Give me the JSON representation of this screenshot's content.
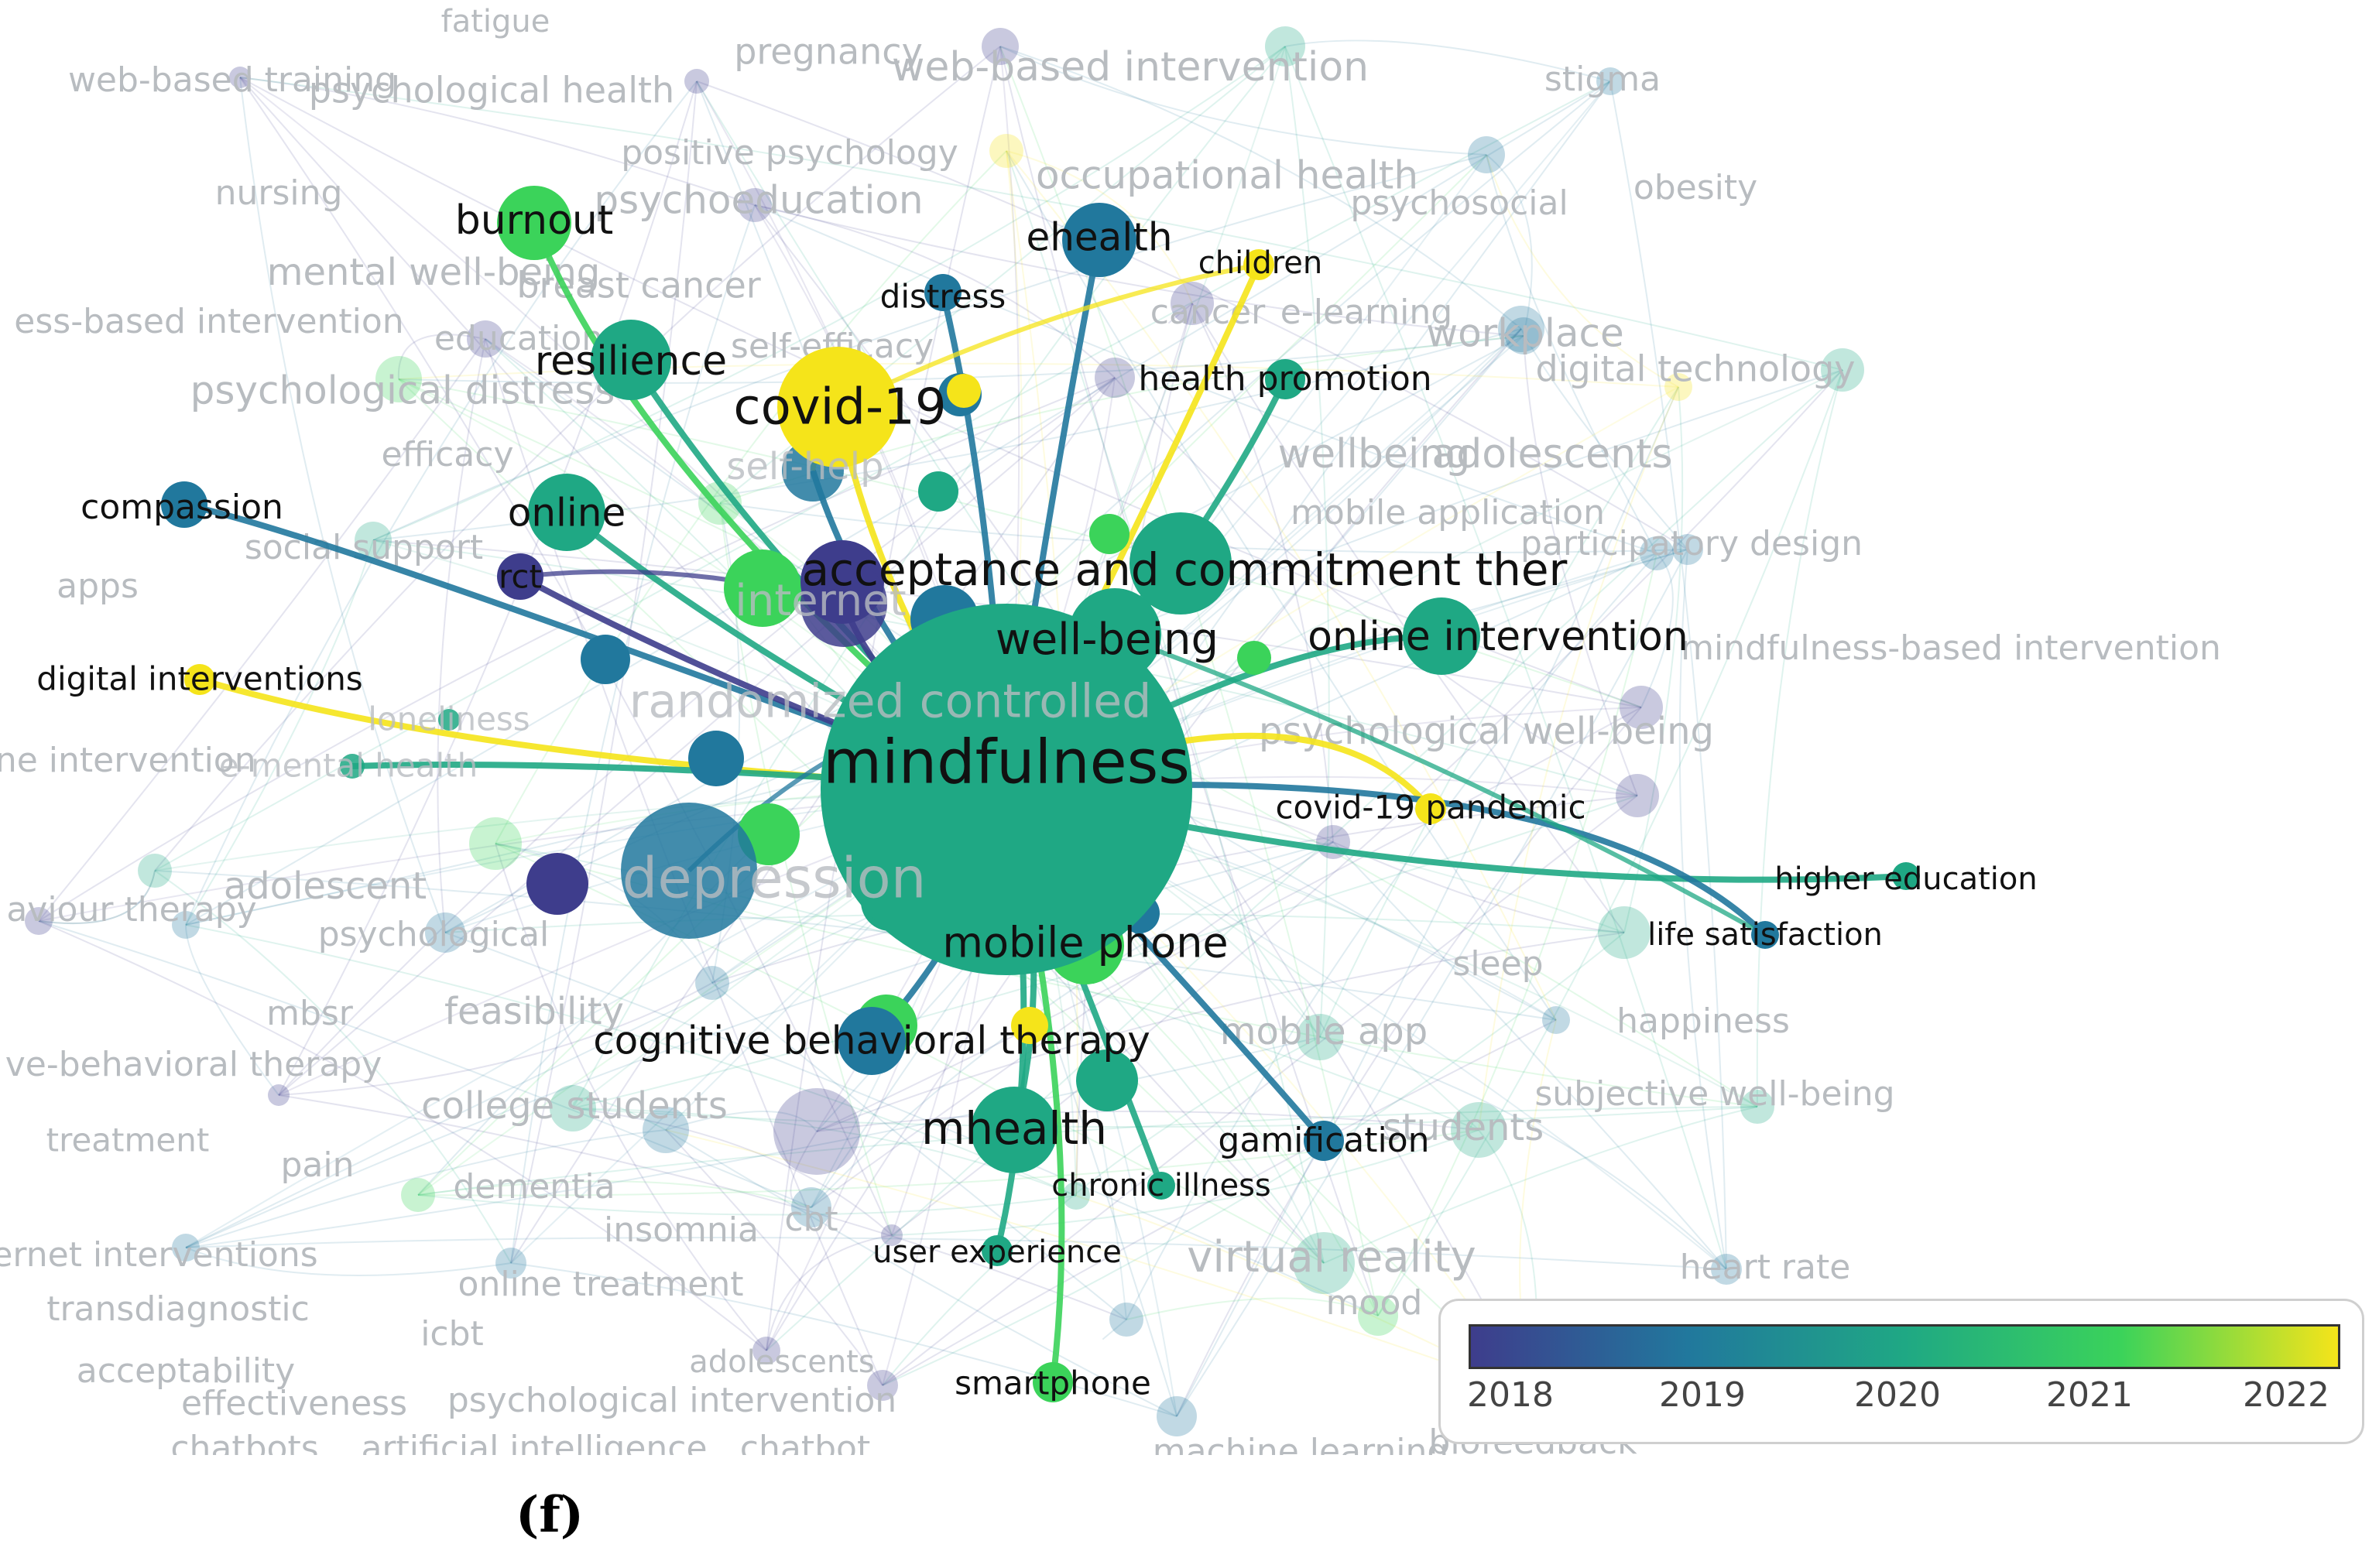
{
  "colors": {
    "2018": "#3e3d8c",
    "2019": "#21789d",
    "2020": "#1fa884",
    "2021": "#3bd35a",
    "2022": "#f5e41a",
    "faded_label": "#b8bcc0",
    "active_label": "#111111"
  },
  "legend": {
    "ticks": [
      "2018",
      "2019",
      "2020",
      "2021",
      "2022"
    ],
    "gradient": [
      "#3e3d8c",
      "#21789d",
      "#1fa884",
      "#3bd35a",
      "#f5e41a"
    ]
  },
  "caption": "(f)",
  "nodes": [
    {
      "id": "mindfulness",
      "label": "mindfulness",
      "year": 2020,
      "size": 5,
      "active": true
    },
    {
      "id": "covid19",
      "label": "covid-19",
      "year": 2022,
      "size": 4,
      "active": true
    },
    {
      "id": "acceptance",
      "label": "acceptance and commitment ther",
      "year": 2020,
      "size": 4,
      "active": true
    },
    {
      "id": "wellbeing",
      "label": "well-being",
      "year": 2020,
      "size": 4,
      "active": true
    },
    {
      "id": "online_intervention",
      "label": "online intervention",
      "year": 2020,
      "size": 4,
      "active": true
    },
    {
      "id": "depression",
      "label": "depression",
      "year": 2019,
      "size": 5,
      "active": false
    },
    {
      "id": "rct_controlled",
      "label": "randomized controlled",
      "year": 2019,
      "size": 4,
      "active": false
    },
    {
      "id": "burnout",
      "label": "burnout",
      "year": 2021,
      "size": 3,
      "active": true
    },
    {
      "id": "resilience",
      "label": "resilience",
      "year": 2020,
      "size": 3,
      "active": true
    },
    {
      "id": "ehealth",
      "label": "ehealth",
      "year": 2019,
      "size": 3,
      "active": true
    },
    {
      "id": "distress",
      "label": "distress",
      "year": 2019,
      "size": 2,
      "active": true
    },
    {
      "id": "children",
      "label": "children",
      "year": 2022,
      "size": 2,
      "active": true
    },
    {
      "id": "health_promotion",
      "label": "health promotion",
      "year": 2020,
      "size": 2,
      "active": true
    },
    {
      "id": "compassion",
      "label": "compassion",
      "year": 2019,
      "size": 2,
      "active": true
    },
    {
      "id": "online",
      "label": "online",
      "year": 2020,
      "size": 3,
      "active": true
    },
    {
      "id": "rct",
      "label": "rct",
      "year": 2018,
      "size": 2,
      "active": true
    },
    {
      "id": "digital_interventions",
      "label": "digital interventions",
      "year": 2022,
      "size": 2,
      "active": true
    },
    {
      "id": "covid19_pandemic",
      "label": "covid-19 pandemic",
      "year": 2022,
      "size": 2,
      "active": true
    },
    {
      "id": "higher_education",
      "label": "higher education",
      "year": 2020,
      "size": 1,
      "active": true
    },
    {
      "id": "life_satisfaction",
      "label": "life satisfaction",
      "year": 2019,
      "size": 1,
      "active": true
    },
    {
      "id": "mobile_phone",
      "label": "mobile phone",
      "year": 2021,
      "size": 3,
      "active": true
    },
    {
      "id": "cbt_therapy",
      "label": "cognitive behavioral therapy",
      "year": 2019,
      "size": 3,
      "active": true
    },
    {
      "id": "mhealth",
      "label": "mhealth",
      "year": 2020,
      "size": 4,
      "active": true
    },
    {
      "id": "gamification",
      "label": "gamification",
      "year": 2019,
      "size": 2,
      "active": true
    },
    {
      "id": "chronic_illness",
      "label": "chronic illness",
      "year": 2020,
      "size": 1,
      "active": true
    },
    {
      "id": "user_experience",
      "label": "user experience",
      "year": 2020,
      "size": 1,
      "active": true
    },
    {
      "id": "smartphone",
      "label": "smartphone",
      "year": 2021,
      "size": 2,
      "active": true
    },
    {
      "id": "self_help",
      "label": "self-help",
      "year": 2019,
      "size": 2,
      "active": false
    },
    {
      "id": "internet",
      "label": "internet",
      "year": 2018,
      "size": 3,
      "active": false
    },
    {
      "id": "loneliness",
      "label": "loneliness",
      "year": 2020,
      "size": 1,
      "active": false
    },
    {
      "id": "emental",
      "label": "e-mental health",
      "year": 2020,
      "size": 1,
      "active": false
    }
  ],
  "background_labels": [
    "fatigue",
    "pregnancy",
    "web-based intervention",
    "stigma",
    "web-based training",
    "psychological health",
    "positive psychology",
    "occupational health",
    "nursing",
    "psychoeducation",
    "psychosocial",
    "obesity",
    "mental well-being",
    "breast cancer",
    "cancer",
    "e-learning",
    "ess-based intervention",
    "education",
    "self-efficacy",
    "workplace",
    "digital technology",
    "psychological distress",
    "efficacy",
    "wellbeing",
    "adolescents",
    "mobile application",
    "participatory design",
    "social support",
    "apps",
    "mindfulness-based intervention",
    "psychological well-being",
    "line intervention",
    "adolescent",
    "aviour therapy",
    "psychological",
    "sleep",
    "happiness",
    "mbsr",
    "feasibility",
    "ve-behavioral therapy",
    "mobile app",
    "subjective well-being",
    "college students",
    "students",
    "treatment",
    "pain",
    "dementia",
    "cbt",
    "insomnia",
    "virtual reality",
    "mood",
    "heart rate",
    "ernet interventions",
    "online treatment",
    "transdiagnostic",
    "icbt",
    "acceptability",
    "adolescents",
    "effectiveness",
    "psychological intervention",
    "chatbots",
    "artificial intelligence",
    "chatbot",
    "machine learning",
    "biofeedback"
  ]
}
